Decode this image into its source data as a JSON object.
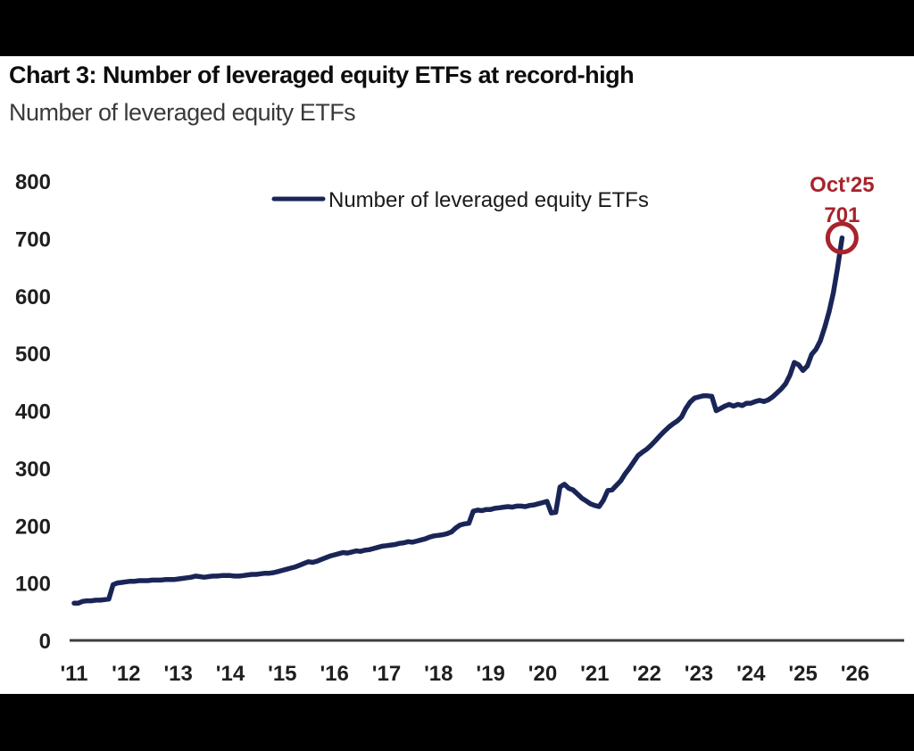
{
  "frame": {
    "background": "#000000",
    "panel_background": "#ffffff"
  },
  "header": {
    "title": "Chart 3: Number of leveraged equity ETFs at record-high",
    "subtitle": "Number of leveraged equity ETFs"
  },
  "chart_data": {
    "type": "line",
    "title": "Number of leveraged equity ETFs",
    "xlabel": "",
    "ylabel": "",
    "grid": false,
    "legend": {
      "label": "Number of leveraged equity ETFs",
      "position": "top-center"
    },
    "x_axis": {
      "tick_labels": [
        "'11",
        "'12",
        "'13",
        "'14",
        "'15",
        "'16",
        "'17",
        "'18",
        "'19",
        "'20",
        "'21",
        "'22",
        "'23",
        "'24",
        "'25",
        "'26"
      ],
      "tick_years": [
        2011,
        2012,
        2013,
        2014,
        2015,
        2016,
        2017,
        2018,
        2019,
        2020,
        2021,
        2022,
        2023,
        2024,
        2025,
        2026
      ],
      "range": [
        2011,
        2026.3
      ]
    },
    "y_axis": {
      "ticks": [
        0,
        100,
        200,
        300,
        400,
        500,
        600,
        700,
        800
      ],
      "range": [
        0,
        800
      ]
    },
    "series": [
      {
        "name": "Number of leveraged equity ETFs",
        "color": "#1a2557",
        "start_year": 2011,
        "frequency": "monthly",
        "values": [
          65,
          65,
          68,
          69,
          69,
          70,
          70,
          71,
          72,
          97,
          100,
          101,
          102,
          103,
          103,
          104,
          104,
          104,
          105,
          105,
          105,
          106,
          106,
          106,
          107,
          108,
          109,
          110,
          112,
          111,
          110,
          111,
          112,
          112,
          113,
          113,
          113,
          112,
          112,
          113,
          114,
          115,
          115,
          116,
          117,
          117,
          118,
          120,
          122,
          124,
          126,
          128,
          131,
          134,
          137,
          136,
          138,
          141,
          144,
          147,
          149,
          151,
          153,
          152,
          154,
          156,
          155,
          157,
          158,
          160,
          162,
          164,
          165,
          166,
          167,
          169,
          170,
          172,
          171,
          173,
          175,
          177,
          180,
          182,
          183,
          184,
          186,
          189,
          196,
          201,
          203,
          204,
          225,
          227,
          226,
          228,
          228,
          230,
          231,
          232,
          233,
          232,
          234,
          234,
          233,
          235,
          236,
          238,
          240,
          242,
          222,
          223,
          267,
          272,
          265,
          262,
          255,
          248,
          243,
          238,
          235,
          233,
          244,
          261,
          262,
          270,
          278,
          290,
          300,
          311,
          322,
          328,
          333,
          340,
          348,
          356,
          364,
          371,
          377,
          382,
          389,
          404,
          415,
          422,
          424,
          426,
          426,
          425,
          400,
          404,
          408,
          411,
          408,
          411,
          409,
          413,
          413,
          416,
          418,
          416,
          419,
          424,
          431,
          438,
          447,
          462,
          484,
          480,
          470,
          478,
          498,
          507,
          522,
          545,
          572,
          605,
          650,
          701
        ]
      }
    ],
    "annotation": {
      "date_label": "Oct'25",
      "value_label": "701",
      "value": 701,
      "x": 2025.75,
      "color": "#a8232b"
    },
    "axis_line_color": "#3d3d3d",
    "tick_label_color": "#1f1f1f"
  }
}
